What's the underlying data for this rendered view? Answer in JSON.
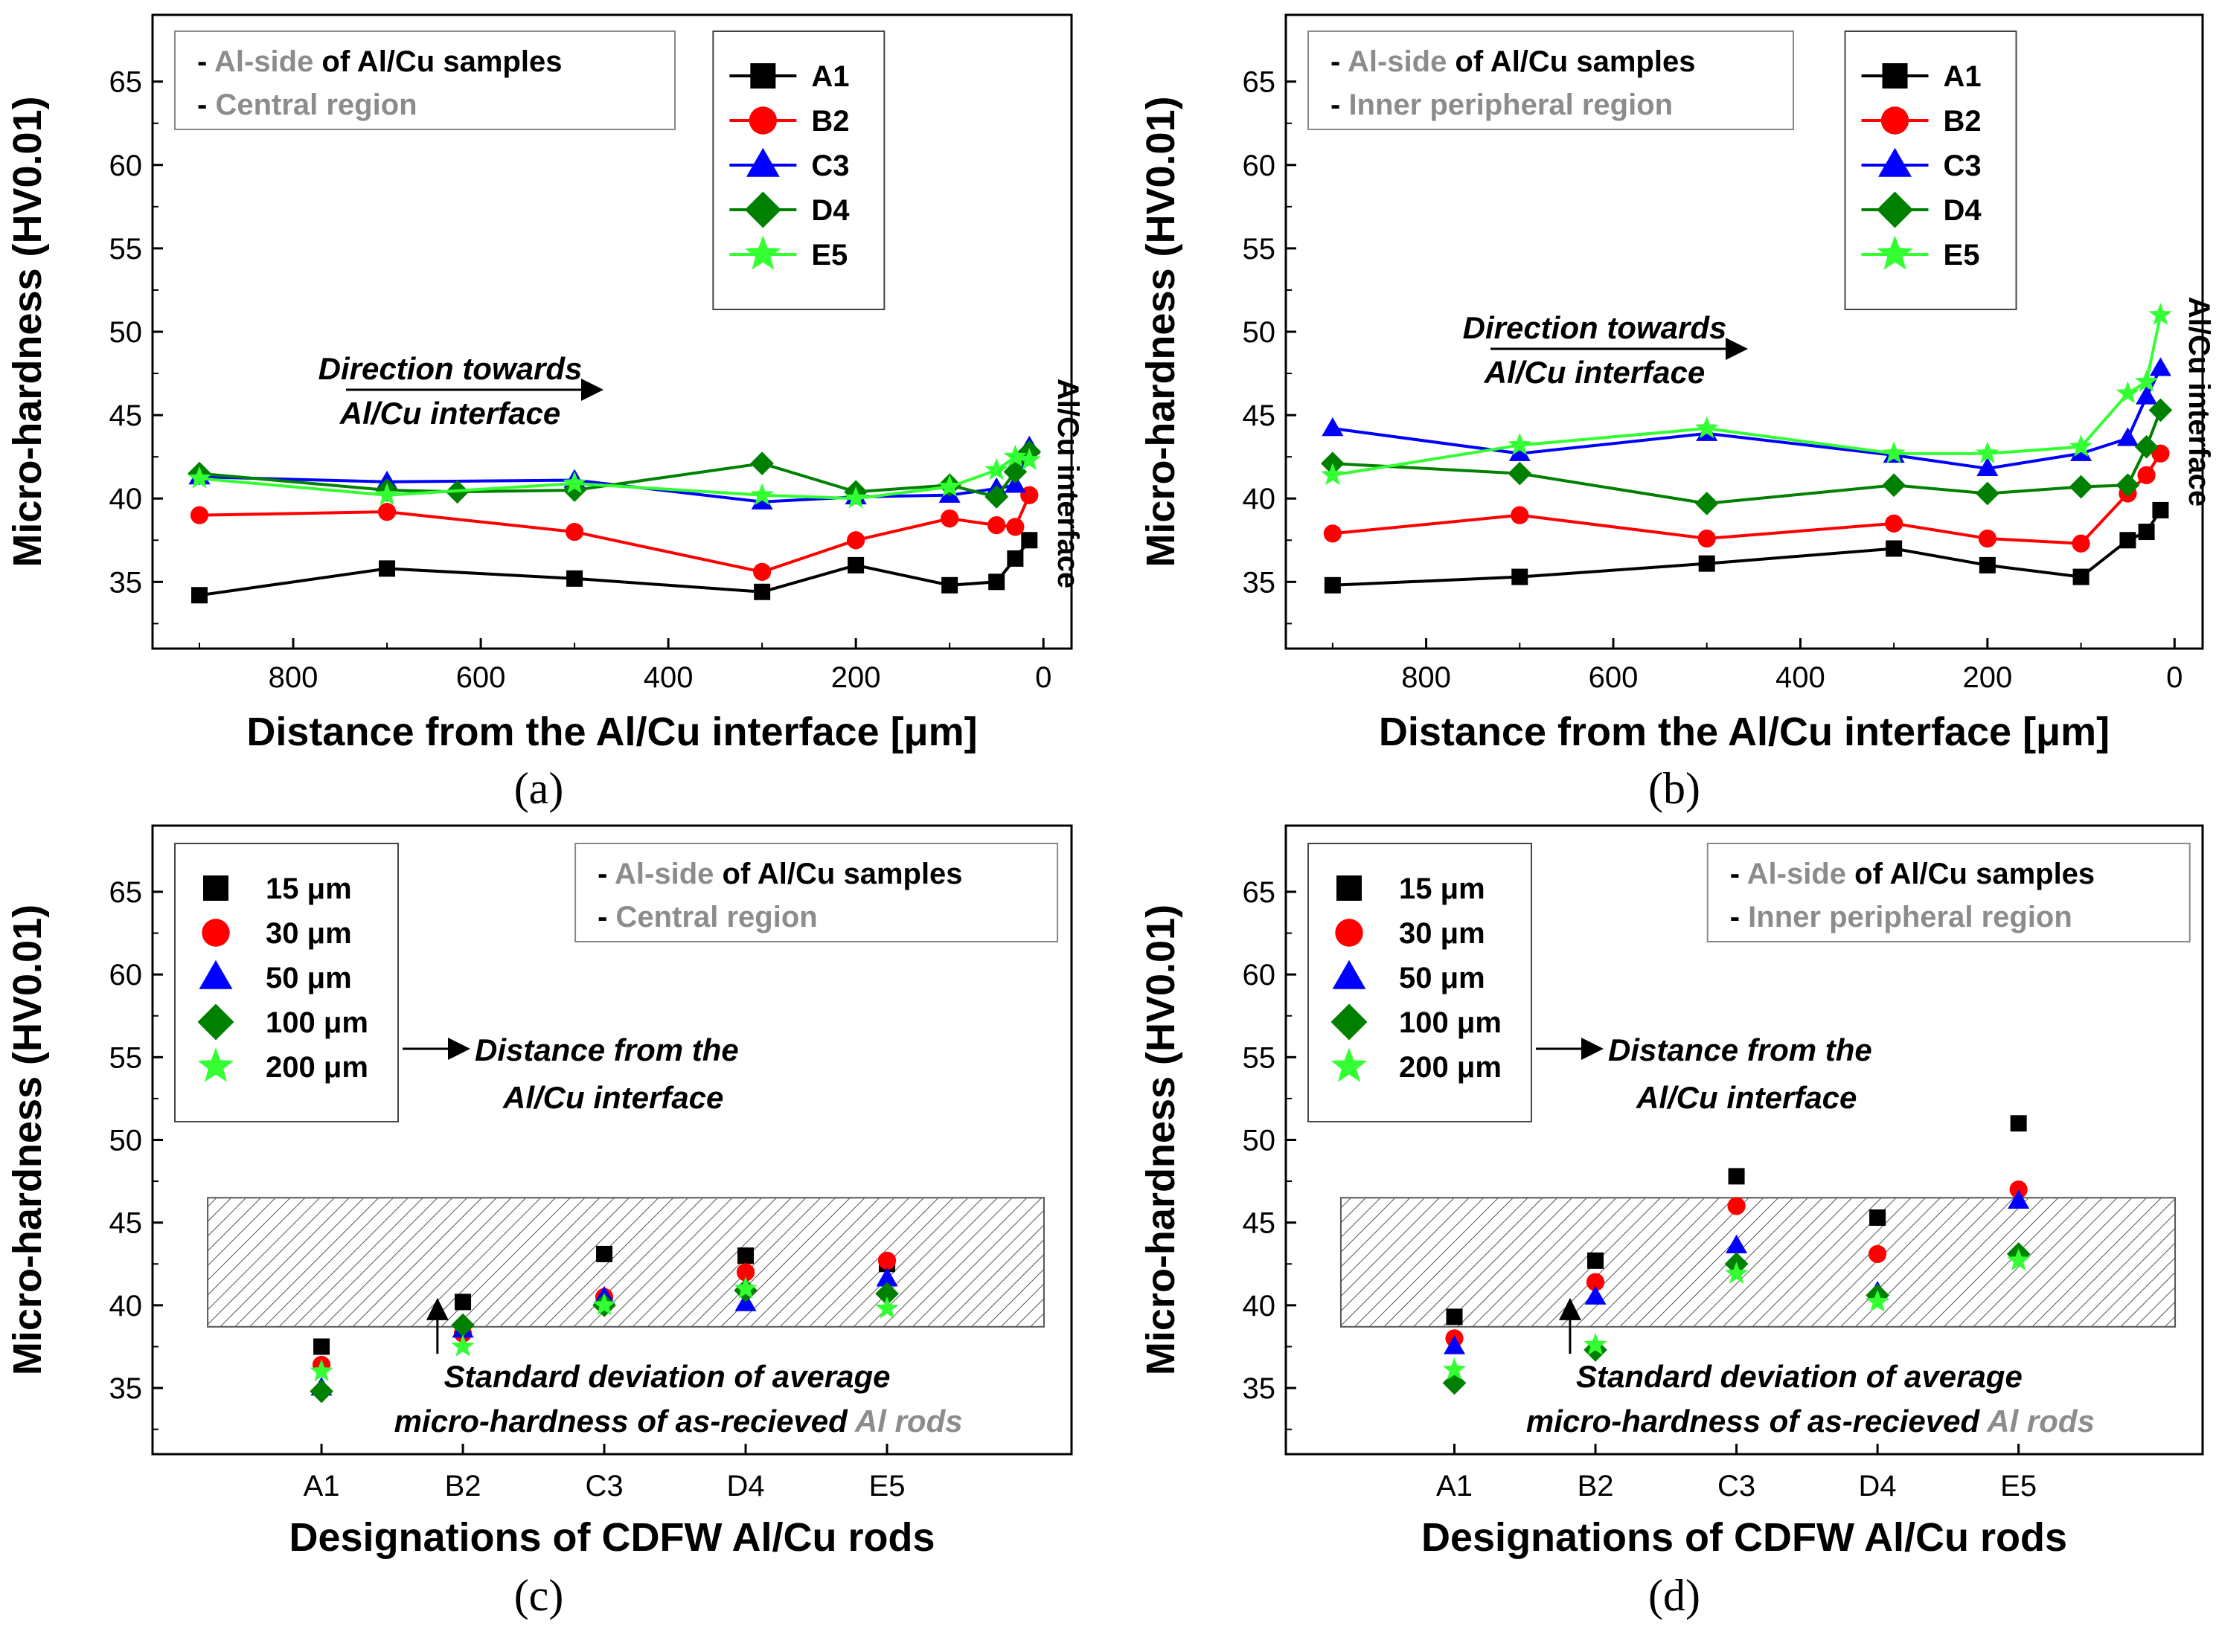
{
  "colors": {
    "A1": "#000000",
    "B2": "#ff0000",
    "C3": "#0000ff",
    "D4": "#008000",
    "E5": "#33ff33",
    "grey_text": "#8c8c8c",
    "hatch": "#555555"
  },
  "charts": [
    {
      "type": "line",
      "panel_label": "(a)",
      "ylabel": "Micro-hardness (HV0.01)",
      "xlabel": "Distance from the Al/Cu interface [μm]",
      "xlim": [
        950,
        -30
      ],
      "ylim": [
        31,
        69
      ],
      "xticks": [
        "800",
        "600",
        "400",
        "200",
        "0"
      ],
      "yticks": [
        "35",
        "40",
        "45",
        "50",
        "55",
        "60",
        "65"
      ],
      "note": {
        "line1_prefix": "- ",
        "line1_grey": "Al-side",
        "line1_rest": " of Al/Cu samples",
        "line2_prefix": "- ",
        "line2_grey": "Central region"
      },
      "annotation": {
        "line1": "Direction towards",
        "line2": "Al/Cu interface"
      },
      "vertical_label": "Al/Cu interface",
      "legend": [
        "A1",
        "B2",
        "C3",
        "D4",
        "E5"
      ],
      "series": [
        {
          "name": "A1",
          "marker": "square",
          "x": [
            900,
            700,
            500,
            300,
            200,
            100,
            50,
            30,
            15
          ],
          "y": [
            34.2,
            35.8,
            35.2,
            34.4,
            36.0,
            34.8,
            35.0,
            36.4,
            37.5
          ]
        },
        {
          "name": "B2",
          "marker": "circle",
          "x": [
            900,
            700,
            500,
            300,
            200,
            100,
            50,
            30,
            15
          ],
          "y": [
            39.0,
            39.2,
            38.0,
            35.6,
            37.5,
            38.8,
            38.4,
            38.3,
            40.2
          ]
        },
        {
          "name": "C3",
          "marker": "triangle",
          "x": [
            900,
            700,
            500,
            300,
            200,
            100,
            50,
            30,
            15
          ],
          "y": [
            41.3,
            41.0,
            41.1,
            39.8,
            40.1,
            40.2,
            40.6,
            40.8,
            43.1
          ]
        },
        {
          "name": "D4",
          "marker": "diamond",
          "x": [
            900,
            700,
            625,
            500,
            300,
            200,
            100,
            50,
            30,
            15
          ],
          "y": [
            41.5,
            40.5,
            40.4,
            40.5,
            42.1,
            40.4,
            40.8,
            40.1,
            41.6,
            42.8
          ]
        },
        {
          "name": "E5",
          "marker": "star",
          "x": [
            900,
            700,
            500,
            300,
            200,
            100,
            50,
            30,
            15
          ],
          "y": [
            41.2,
            40.2,
            40.9,
            40.2,
            40.0,
            40.7,
            41.7,
            42.5,
            42.3
          ]
        }
      ]
    },
    {
      "type": "line",
      "panel_label": "(b)",
      "ylabel": "Micro-hardness (HV0.01)",
      "xlabel": "Distance from the Al/Cu interface [μm]",
      "xlim": [
        950,
        -30
      ],
      "ylim": [
        31,
        69
      ],
      "xticks": [
        "800",
        "600",
        "400",
        "200",
        "0"
      ],
      "yticks": [
        "35",
        "40",
        "45",
        "50",
        "55",
        "60",
        "65"
      ],
      "note": {
        "line1_prefix": "- ",
        "line1_grey": "Al-side",
        "line1_rest": " of Al/Cu samples",
        "line2_prefix": "- ",
        "line2_grey": "Inner peripheral region"
      },
      "annotation": {
        "line1": "Direction towards",
        "line2": "Al/Cu interface"
      },
      "vertical_label": "Al/Cu interface",
      "legend": [
        "A1",
        "B2",
        "C3",
        "D4",
        "E5"
      ],
      "series": [
        {
          "name": "A1",
          "marker": "square",
          "x": [
            900,
            700,
            500,
            300,
            200,
            100,
            50,
            30,
            15
          ],
          "y": [
            34.8,
            35.3,
            36.1,
            37.0,
            36.0,
            35.3,
            37.5,
            38.0,
            39.3
          ]
        },
        {
          "name": "B2",
          "marker": "circle",
          "x": [
            900,
            700,
            500,
            300,
            200,
            100,
            50,
            30,
            15
          ],
          "y": [
            37.9,
            39.0,
            37.6,
            38.5,
            37.6,
            37.3,
            40.3,
            41.4,
            42.7
          ]
        },
        {
          "name": "C3",
          "marker": "triangle",
          "x": [
            900,
            700,
            500,
            300,
            200,
            100,
            50,
            30,
            15
          ],
          "y": [
            44.2,
            42.7,
            43.9,
            42.6,
            41.8,
            42.7,
            43.6,
            46.1,
            47.8
          ]
        },
        {
          "name": "D4",
          "marker": "diamond",
          "x": [
            900,
            700,
            500,
            300,
            200,
            100,
            50,
            30,
            15
          ],
          "y": [
            42.1,
            41.5,
            39.7,
            40.8,
            40.3,
            40.7,
            40.8,
            43.1,
            45.3
          ]
        },
        {
          "name": "E5",
          "marker": "star",
          "x": [
            900,
            700,
            500,
            300,
            200,
            100,
            50,
            30,
            15
          ],
          "y": [
            41.4,
            43.2,
            44.2,
            42.7,
            42.7,
            43.1,
            46.3,
            47.0,
            51.0
          ]
        }
      ]
    },
    {
      "type": "scatter",
      "panel_label": "(c)",
      "ylabel": "Micro-hardness (HV0.01)",
      "xlabel": "Designations of CDFW Al/Cu rods",
      "categories": [
        "A1",
        "B2",
        "C3",
        "D4",
        "E5"
      ],
      "ylim": [
        31,
        69
      ],
      "yticks": [
        "35",
        "40",
        "45",
        "50",
        "55",
        "60",
        "65"
      ],
      "note": {
        "line1_prefix": "- ",
        "line1_grey": "Al-side",
        "line1_rest": " of Al/Cu samples",
        "line2_prefix": "- ",
        "line2_grey": "Central region"
      },
      "std_band": [
        38.7,
        46.5
      ],
      "distance_annotation": {
        "line1": "Distance from the",
        "line2": "Al/Cu interface"
      },
      "std_annotation": {
        "line1": "Standard deviation of average",
        "line2_prefix": "micro-hardness of as-recieved ",
        "line2_grey": "Al rods"
      },
      "legend": [
        "15 μm",
        "30 μm",
        "50 μm",
        "100 μm",
        "200 μm"
      ],
      "series": [
        {
          "name": "15 μm",
          "marker": "square",
          "values": [
            37.5,
            40.2,
            43.1,
            43.0,
            42.5
          ]
        },
        {
          "name": "30 μm",
          "marker": "circle",
          "values": [
            36.4,
            38.3,
            40.5,
            42.0,
            42.7
          ]
        },
        {
          "name": "50 μm",
          "marker": "triangle",
          "values": [
            35.0,
            38.5,
            40.5,
            40.1,
            41.6
          ]
        },
        {
          "name": "100 μm",
          "marker": "diamond",
          "values": [
            34.8,
            38.8,
            40.0,
            40.9,
            40.7
          ]
        },
        {
          "name": "200 μm",
          "marker": "star",
          "values": [
            36.0,
            37.5,
            40.0,
            41.0,
            39.8
          ]
        }
      ]
    },
    {
      "type": "scatter",
      "panel_label": "(d)",
      "ylabel": "Micro-hardness (HV0.01)",
      "xlabel": "Designations of CDFW Al/Cu rods",
      "categories": [
        "A1",
        "B2",
        "C3",
        "D4",
        "E5"
      ],
      "ylim": [
        31,
        69
      ],
      "yticks": [
        "35",
        "40",
        "45",
        "50",
        "55",
        "60",
        "65"
      ],
      "note": {
        "line1_prefix": "- ",
        "line1_grey": "Al-side",
        "line1_rest": " of Al/Cu samples",
        "line2_prefix": "- ",
        "line2_grey": "Inner peripheral region"
      },
      "std_band": [
        38.7,
        46.5
      ],
      "distance_annotation": {
        "line1": "Distance from the",
        "line2": "Al/Cu interface"
      },
      "std_annotation": {
        "line1": "Standard deviation of average",
        "line2_prefix": "micro-hardness of as-recieved ",
        "line2_grey": "Al rods"
      },
      "legend": [
        "15 μm",
        "30 μm",
        "50 μm",
        "100 μm",
        "200 μm"
      ],
      "series": [
        {
          "name": "15 μm",
          "marker": "square",
          "values": [
            39.3,
            42.7,
            47.8,
            45.3,
            51.0
          ]
        },
        {
          "name": "30 μm",
          "marker": "circle",
          "values": [
            38.0,
            41.4,
            46.0,
            43.1,
            47.0
          ]
        },
        {
          "name": "50 μm",
          "marker": "triangle",
          "values": [
            37.5,
            40.5,
            43.6,
            40.8,
            46.3
          ]
        },
        {
          "name": "100 μm",
          "marker": "diamond",
          "values": [
            35.3,
            37.3,
            42.5,
            40.6,
            43.1
          ]
        },
        {
          "name": "200 μm",
          "marker": "star",
          "values": [
            36.1,
            37.6,
            41.9,
            40.2,
            42.7
          ]
        }
      ]
    }
  ]
}
